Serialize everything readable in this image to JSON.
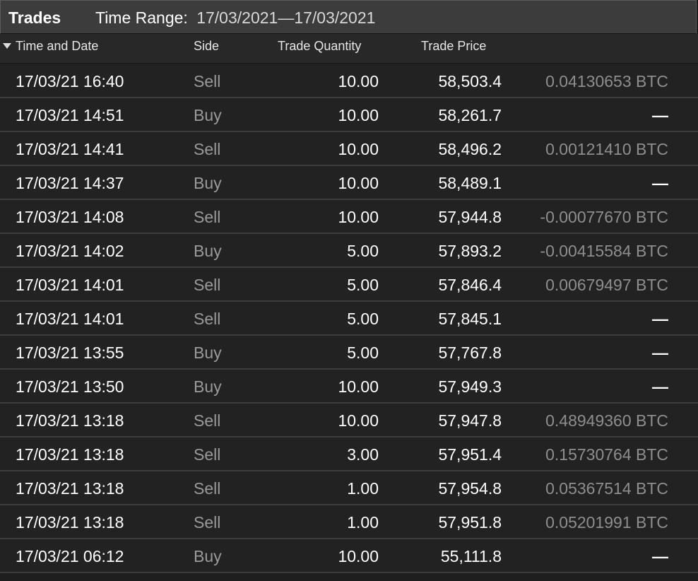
{
  "panel": {
    "title": "Trades",
    "time_range_label": "Time Range:",
    "time_range_value": "17/03/2021—17/03/2021"
  },
  "columns": {
    "time_and_date": "Time and Date",
    "side": "Side",
    "trade_quantity": "Trade Quantity",
    "trade_price": "Trade Price",
    "sort_indicator": "sort-descending-triangle-icon"
  },
  "rows": [
    {
      "date": "17/03/21 16:40",
      "side": "Sell",
      "qty": "10.00",
      "price": "58,503.4",
      "pnl": "0.04130653 BTC"
    },
    {
      "date": "17/03/21 14:51",
      "side": "Buy",
      "qty": "10.00",
      "price": "58,261.7",
      "pnl": "—"
    },
    {
      "date": "17/03/21 14:41",
      "side": "Sell",
      "qty": "10.00",
      "price": "58,496.2",
      "pnl": "0.00121410 BTC"
    },
    {
      "date": "17/03/21 14:37",
      "side": "Buy",
      "qty": "10.00",
      "price": "58,489.1",
      "pnl": "—"
    },
    {
      "date": "17/03/21 14:08",
      "side": "Sell",
      "qty": "10.00",
      "price": "57,944.8",
      "pnl": "-0.00077670 BTC"
    },
    {
      "date": "17/03/21 14:02",
      "side": "Buy",
      "qty": "5.00",
      "price": "57,893.2",
      "pnl": "-0.00415584 BTC"
    },
    {
      "date": "17/03/21 14:01",
      "side": "Sell",
      "qty": "5.00",
      "price": "57,846.4",
      "pnl": "0.00679497 BTC"
    },
    {
      "date": "17/03/21 14:01",
      "side": "Sell",
      "qty": "5.00",
      "price": "57,845.1",
      "pnl": "—"
    },
    {
      "date": "17/03/21 13:55",
      "side": "Buy",
      "qty": "5.00",
      "price": "57,767.8",
      "pnl": "—"
    },
    {
      "date": "17/03/21 13:50",
      "side": "Buy",
      "qty": "10.00",
      "price": "57,949.3",
      "pnl": "—"
    },
    {
      "date": "17/03/21 13:18",
      "side": "Sell",
      "qty": "10.00",
      "price": "57,947.8",
      "pnl": "0.48949360 BTC"
    },
    {
      "date": "17/03/21 13:18",
      "side": "Sell",
      "qty": "3.00",
      "price": "57,951.4",
      "pnl": "0.15730764 BTC"
    },
    {
      "date": "17/03/21 13:18",
      "side": "Sell",
      "qty": "1.00",
      "price": "57,954.8",
      "pnl": "0.05367514 BTC"
    },
    {
      "date": "17/03/21 13:18",
      "side": "Sell",
      "qty": "1.00",
      "price": "57,951.8",
      "pnl": "0.05201991 BTC"
    },
    {
      "date": "17/03/21 06:12",
      "side": "Buy",
      "qty": "10.00",
      "price": "55,111.8",
      "pnl": "—"
    }
  ]
}
